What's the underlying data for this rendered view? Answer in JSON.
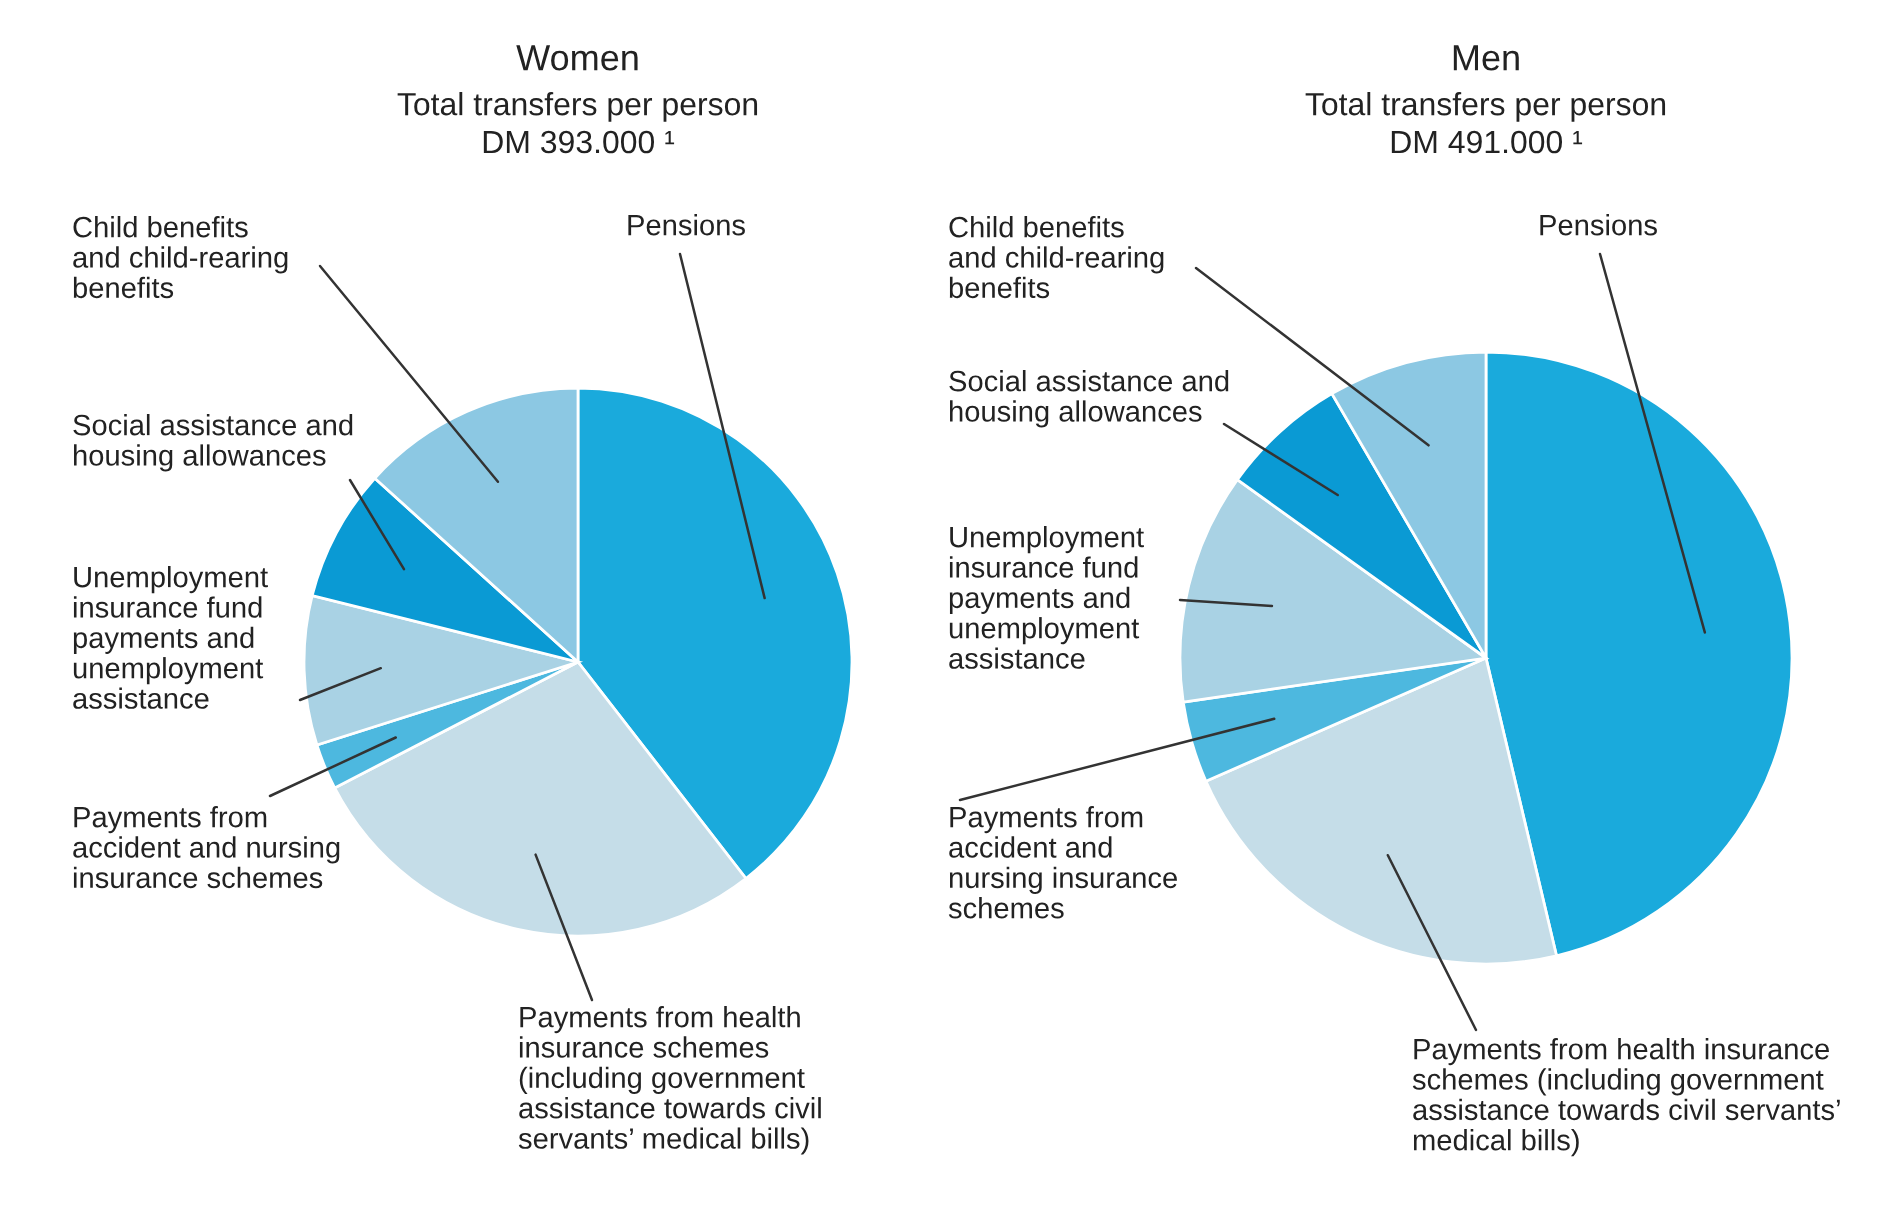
{
  "chart_data": [
    {
      "type": "pie",
      "title": "Women",
      "subtitle": "Total transfers per person\nDM 393.000 ¹",
      "categories": [
        "Pensions",
        "Payments from health\ninsurance schemes\n(including government\nassistance towards civil\nservants’ medical bills)",
        "Payments from\naccident and nursing\ninsurance schemes",
        "Unemployment\ninsurance fund\npayments and\nunemployment\nassistance",
        "Social assistance and\nhousing allowances",
        "Child benefits\nand child-rearing\nbenefits"
      ],
      "values": [
        39.5,
        27.9,
        2.7,
        8.8,
        7.8,
        13.3
      ],
      "colors": [
        "#1aaadc",
        "#c5dde8",
        "#4db8df",
        "#a9d2e4",
        "#0a9ad4",
        "#8cc8e3"
      ]
    },
    {
      "type": "pie",
      "title": "Men",
      "subtitle": "Total transfers per person\nDM 491.000 ¹",
      "categories": [
        "Pensions",
        "Payments from health insurance\nschemes (including government\nassistance towards civil servants’\nmedical bills)",
        "Payments from\naccident and\nnursing insurance\nschemes",
        "Unemployment\ninsurance fund\npayments and\nunemployment\nassistance",
        "Social assistance and\nhousing allowances",
        "Child benefits\nand child-rearing\nbenefits"
      ],
      "values": [
        46.3,
        22.1,
        4.3,
        12.2,
        6.7,
        8.4
      ],
      "colors": [
        "#1aaadc",
        "#c5dde8",
        "#4db8df",
        "#a9d2e4",
        "#0a9ad4",
        "#8cc8e3"
      ]
    }
  ]
}
